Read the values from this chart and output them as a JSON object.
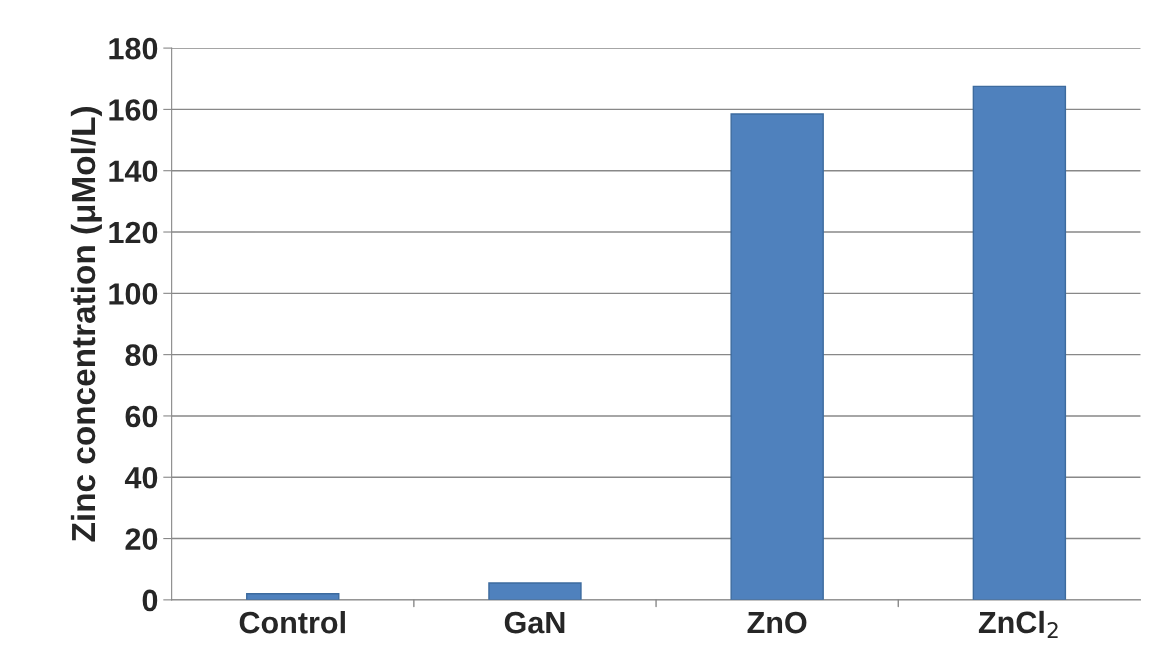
{
  "chart_data": {
    "type": "bar",
    "ylabel": "Zinc concentration (μMol/L)",
    "categories": [
      "Control",
      "GaN",
      "ZnO",
      "ZnCl$_{2}$"
    ],
    "values": [
      2,
      5.5,
      158.5,
      167.5
    ],
    "color": "#4f81bd",
    "ylim": [
      0,
      180
    ],
    "yticks": [
      0,
      20,
      40,
      60,
      80,
      100,
      120,
      140,
      160,
      180
    ],
    "grid": "y"
  }
}
